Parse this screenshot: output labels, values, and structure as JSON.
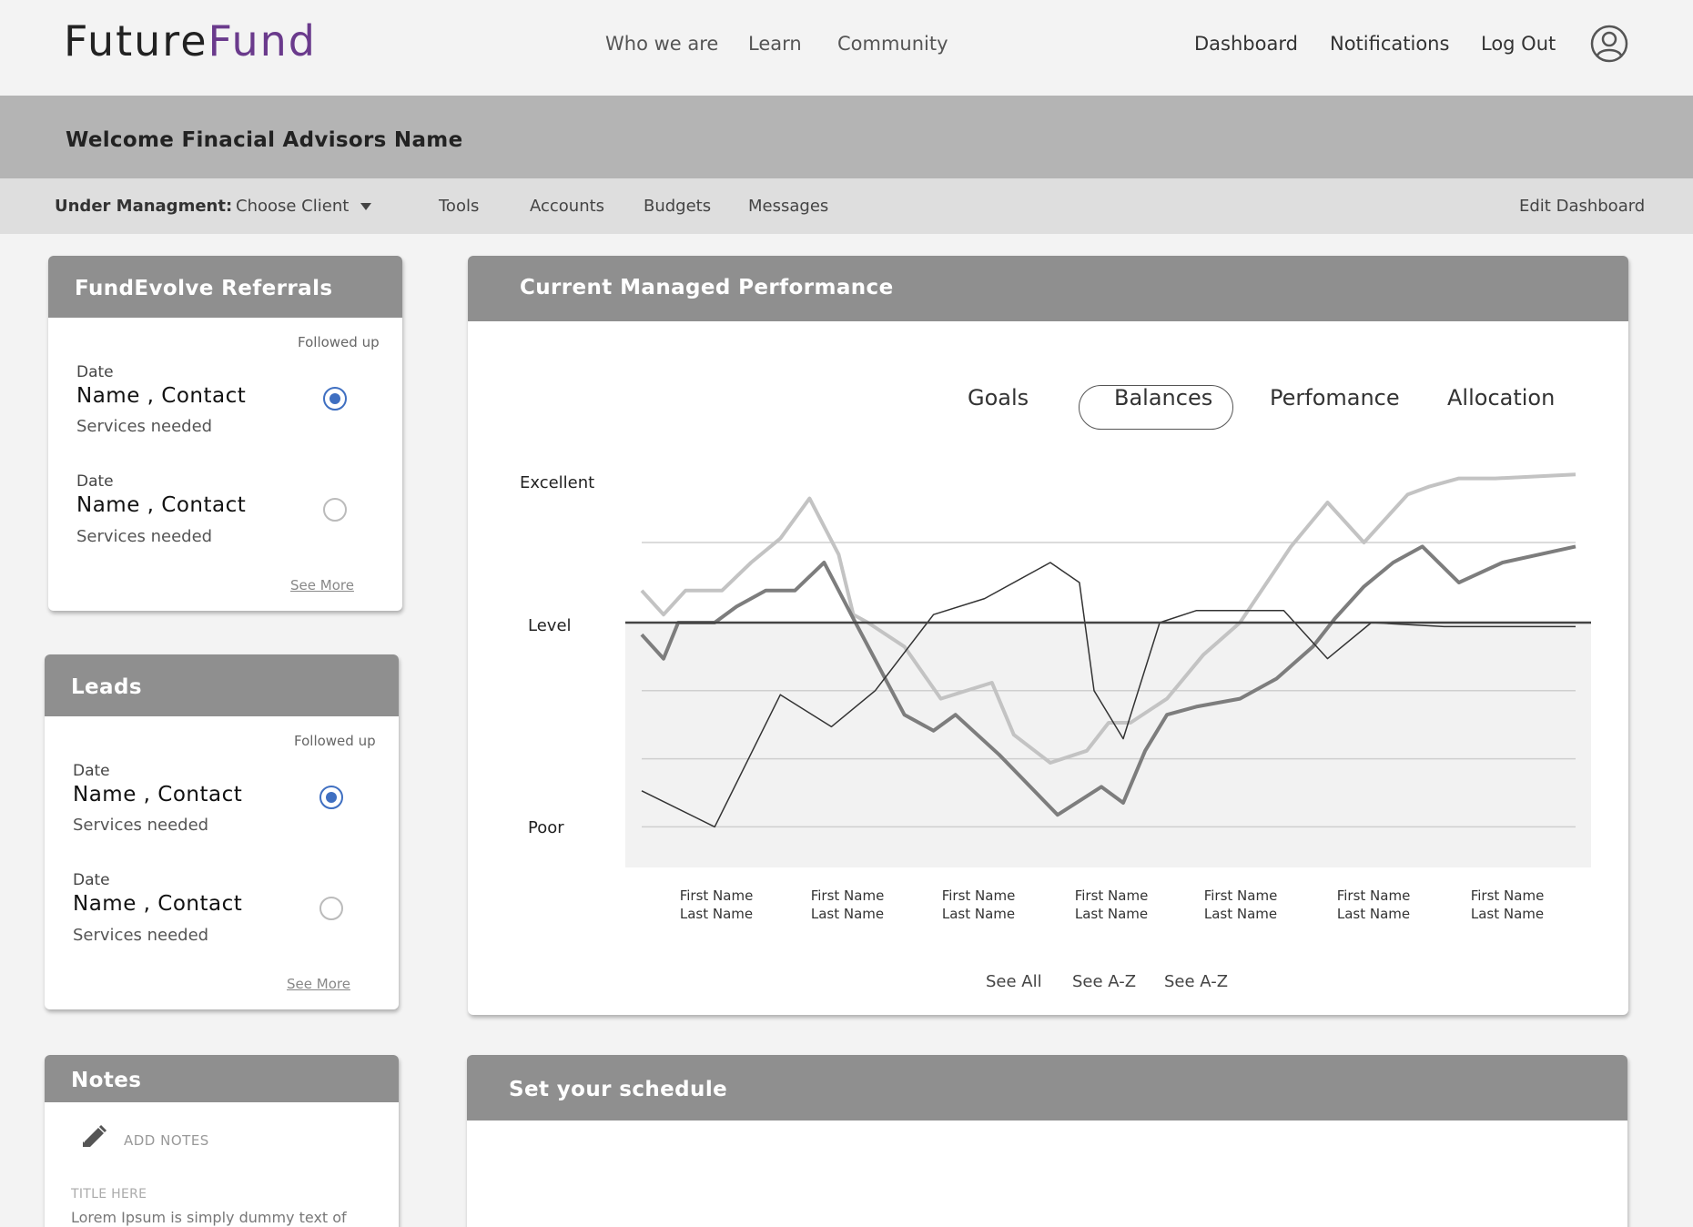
{
  "brand": {
    "part1": "Future",
    "part2": "Fund",
    "color_dark": "#222222",
    "color_accent": "#6a3a8c"
  },
  "top_nav": {
    "links": [
      "Who we are",
      "Learn",
      "Community"
    ],
    "right": [
      "Dashboard",
      "Notifications",
      "Log Out"
    ],
    "avatar_icon": "user-circle-icon"
  },
  "welcome": {
    "text": "Welcome Finacial Advisors Name"
  },
  "subnav": {
    "label": "Under Managment:",
    "client_select": "Choose Client",
    "items": [
      "Tools",
      "Accounts",
      "Budgets",
      "Messages"
    ],
    "edit": "Edit Dashboard"
  },
  "referrals": {
    "title": "FundEvolve Referrals",
    "followed_label": "Followed up",
    "entries": [
      {
        "date": "Date",
        "name": "Name , Contact",
        "services": "Services needed",
        "followed": true
      },
      {
        "date": "Date",
        "name": "Name , Contact",
        "services": "Services needed",
        "followed": false
      }
    ],
    "see_more": "See More"
  },
  "leads": {
    "title": "Leads",
    "followed_label": "Followed up",
    "entries": [
      {
        "date": "Date",
        "name": "Name , Contact",
        "services": "Services needed",
        "followed": true
      },
      {
        "date": "Date",
        "name": "Name , Contact",
        "services": "Services needed",
        "followed": false
      }
    ],
    "see_more": "See More"
  },
  "notes": {
    "title": "Notes",
    "add_label": "ADD NOTES",
    "add_icon": "pencil-icon",
    "note_title": "TITLE HERE",
    "note_text": "Lorem Ipsum is simply dummy text of"
  },
  "performance": {
    "title": "Current Managed Performance",
    "tabs": [
      "Goals",
      "Balances",
      "Perfomance",
      "Allocation"
    ],
    "active_tab": "Balances",
    "footer_links": [
      "See All",
      "See A-Z",
      "See A-Z"
    ]
  },
  "schedule": {
    "title": "Set your schedule"
  },
  "chart_data": {
    "type": "line",
    "y_axis_labels": [
      "Excellent",
      "Level",
      "Poor"
    ],
    "x_axis_labels": [
      [
        "First Name",
        "Last Name"
      ],
      [
        "First Name",
        "Last Name"
      ],
      [
        "First Name",
        "Last Name"
      ],
      [
        "First Name",
        "Last Name"
      ],
      [
        "First Name",
        "Last Name"
      ],
      [
        "First Name",
        "Last Name"
      ],
      [
        "First Name",
        "Last Name"
      ]
    ],
    "level_value": 0,
    "ylim": [
      -3.0,
      2.0
    ],
    "grid": true,
    "series": [
      {
        "color": "#c3c3c3",
        "stroke": 4,
        "x": [
          0.0,
          0.3,
          0.6,
          1.1,
          1.5,
          1.9,
          2.3,
          2.7,
          2.9,
          3.1,
          3.6,
          4.1,
          4.8,
          5.1,
          5.6,
          6.1,
          6.4,
          6.7,
          7.2,
          7.7,
          8.2,
          8.9,
          9.4,
          9.9,
          10.5,
          10.8,
          11.2,
          11.7,
          12.8
        ],
        "y": [
          0.4,
          0.1,
          0.4,
          0.4,
          0.75,
          1.05,
          1.55,
          0.85,
          0.1,
          0.0,
          -0.3,
          -0.95,
          -0.75,
          -1.4,
          -1.75,
          -1.6,
          -1.25,
          -1.25,
          -0.95,
          -0.4,
          0.0,
          0.95,
          1.5,
          1.0,
          1.6,
          1.7,
          1.8,
          1.8,
          1.85
        ]
      },
      {
        "color": "#7d7d7d",
        "stroke": 4,
        "x": [
          0.0,
          0.3,
          0.5,
          1.0,
          1.3,
          1.7,
          2.1,
          2.5,
          2.9,
          3.6,
          4.0,
          4.3,
          4.9,
          5.7,
          6.3,
          6.6,
          6.9,
          7.2,
          7.6,
          8.2,
          8.7,
          9.2,
          9.5,
          9.9,
          10.3,
          10.7,
          11.2,
          11.8,
          12.8
        ],
        "y": [
          -0.15,
          -0.45,
          0.0,
          0.0,
          0.2,
          0.4,
          0.4,
          0.75,
          0.05,
          -1.15,
          -1.35,
          -1.15,
          -1.65,
          -2.4,
          -2.05,
          -2.25,
          -1.6,
          -1.15,
          -1.05,
          -0.95,
          -0.7,
          -0.3,
          0.05,
          0.45,
          0.75,
          0.95,
          0.5,
          0.75,
          0.95
        ]
      },
      {
        "color": "#333333",
        "stroke": 1.5,
        "x": [
          0.0,
          1.0,
          1.9,
          2.6,
          3.2,
          4.0,
          4.7,
          5.6,
          6.0,
          6.2,
          6.6,
          7.1,
          7.6,
          8.0,
          8.4,
          8.8,
          9.4,
          10.0,
          11.0,
          12.8
        ],
        "y": [
          -2.1,
          -2.55,
          -0.9,
          -1.3,
          -0.85,
          0.1,
          0.3,
          0.75,
          0.5,
          -0.85,
          -1.45,
          0.0,
          0.15,
          0.15,
          0.15,
          0.15,
          -0.45,
          0.0,
          -0.05,
          -0.05
        ]
      }
    ]
  }
}
